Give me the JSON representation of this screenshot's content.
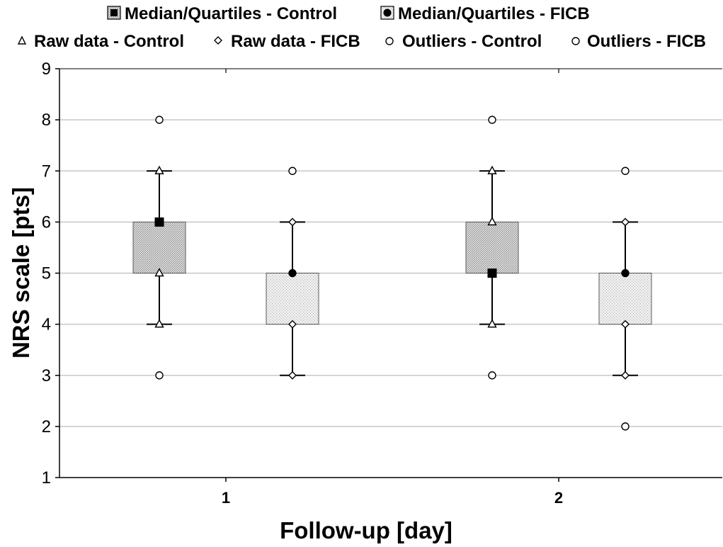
{
  "chart_data": {
    "type": "box",
    "title": "",
    "xlabel": "Follow-up [day]",
    "ylabel": "NRS scale [pts]",
    "ylim": [
      1,
      9
    ],
    "yticks": [
      1,
      2,
      3,
      4,
      5,
      6,
      7,
      8,
      9
    ],
    "grid": "horizontal",
    "legend_position": "top",
    "categories": [
      "1",
      "2"
    ],
    "legend": [
      {
        "label": "Median/Quartiles - Control",
        "symbol": "filled-square-in-box"
      },
      {
        "label": "Median/Quartiles - FICB",
        "symbol": "filled-circle-in-box"
      },
      {
        "label": "Raw data - Control",
        "symbol": "triangle"
      },
      {
        "label": "Raw data - FICB",
        "symbol": "diamond"
      },
      {
        "label": "Outliers - Control",
        "symbol": "circle"
      },
      {
        "label": "Outliers - FICB",
        "symbol": "circle"
      }
    ],
    "series": [
      {
        "name": "Control",
        "median_marker": "square",
        "raw_marker": "triangle",
        "box_color": "#c8c8c8",
        "groups": [
          {
            "category": "1",
            "median": 6,
            "q1": 5,
            "q3": 6,
            "whisker_low": 4,
            "whisker_high": 7,
            "raw": [
              4,
              5,
              7
            ],
            "outliers": [
              3,
              8
            ]
          },
          {
            "category": "2",
            "median": 5,
            "q1": 5,
            "q3": 6,
            "whisker_low": 4,
            "whisker_high": 7,
            "raw": [
              4,
              6,
              7
            ],
            "outliers": [
              3,
              8
            ]
          }
        ]
      },
      {
        "name": "FICB",
        "median_marker": "circle",
        "raw_marker": "diamond",
        "box_color": "#e2e2e2",
        "groups": [
          {
            "category": "1",
            "median": 5,
            "q1": 4,
            "q3": 5,
            "whisker_low": 3,
            "whisker_high": 6,
            "raw": [
              3,
              4,
              6
            ],
            "outliers": [
              7
            ]
          },
          {
            "category": "2",
            "median": 5,
            "q1": 4,
            "q3": 5,
            "whisker_low": 3,
            "whisker_high": 6,
            "raw": [
              3,
              4,
              6
            ],
            "outliers": [
              2,
              7
            ]
          }
        ]
      }
    ]
  }
}
